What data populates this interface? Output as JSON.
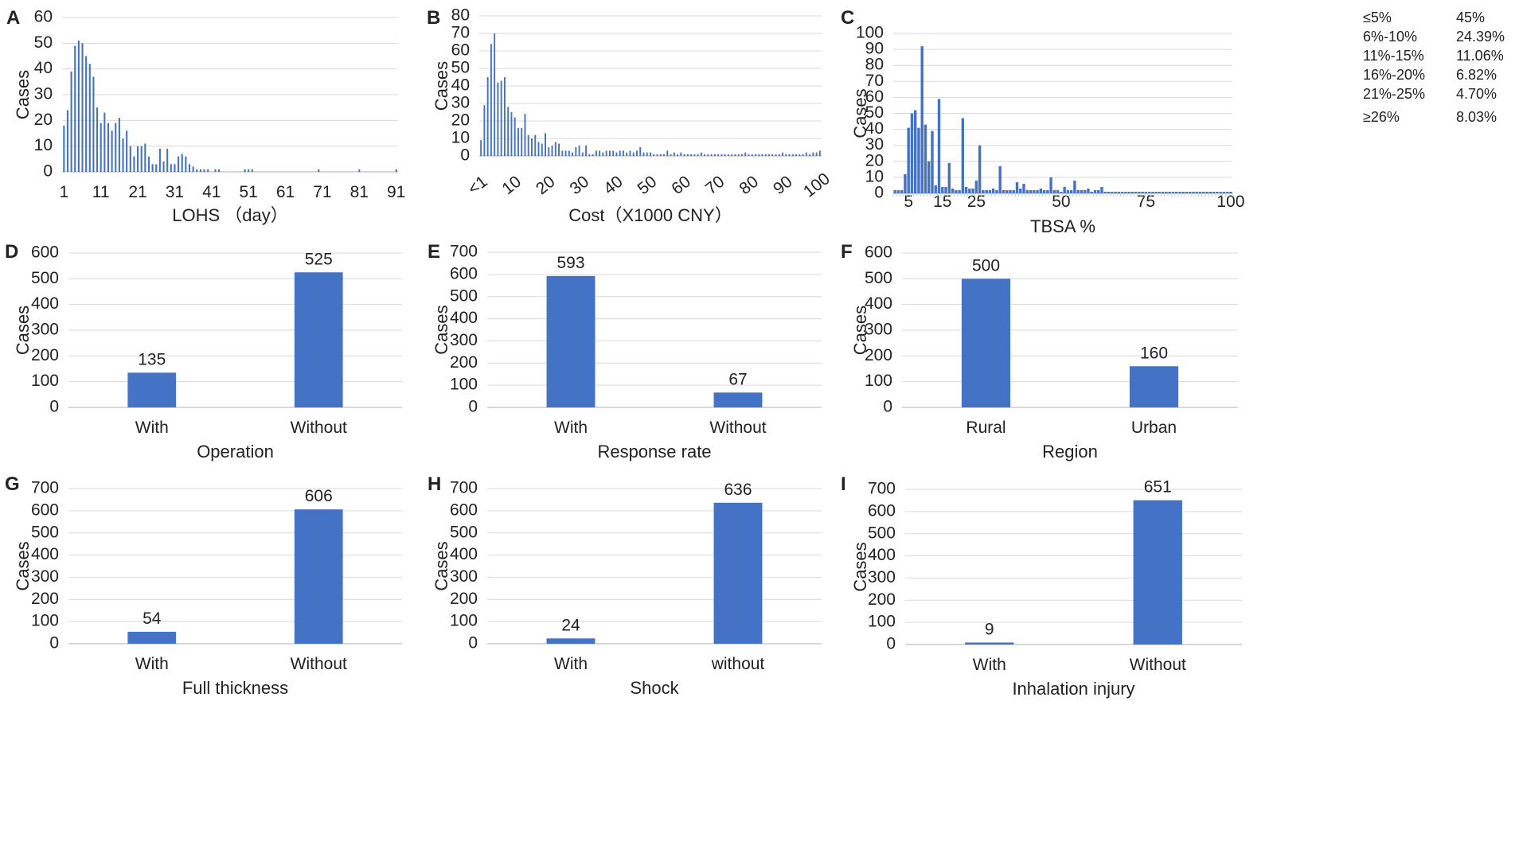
{
  "colors": {
    "bar": "#4472C4",
    "grid": "#d9d9d9",
    "text": "#222222"
  },
  "chart_data": [
    {
      "id": "A",
      "type": "bar",
      "letter": "A",
      "xlabel": "LOHS （day）",
      "ylabel": "Cases",
      "ylim": [
        0,
        60
      ],
      "yticks": [
        0,
        10,
        20,
        30,
        40,
        50,
        60
      ],
      "xticks": [
        "1",
        "11",
        "21",
        "31",
        "41",
        "51",
        "61",
        "71",
        "81",
        "91"
      ],
      "xcount": 91,
      "values": [
        18,
        24,
        39,
        49,
        51,
        50,
        45,
        42,
        37,
        25,
        19,
        23,
        19,
        16,
        19,
        21,
        13,
        16,
        10,
        6,
        10,
        10,
        11,
        6,
        3,
        3,
        9,
        4,
        9,
        3,
        3,
        6,
        7,
        6,
        3,
        2,
        1,
        1,
        1,
        1,
        0,
        1,
        1,
        0,
        0,
        0,
        0,
        0,
        0,
        1,
        1,
        1,
        0,
        0,
        0,
        0,
        0,
        0,
        0,
        0,
        0,
        0,
        0,
        0,
        0,
        0,
        0,
        0,
        0,
        1,
        0,
        0,
        0,
        0,
        0,
        0,
        0,
        0,
        0,
        0,
        1,
        0,
        0,
        0,
        0,
        0,
        0,
        0,
        0,
        0,
        1
      ]
    },
    {
      "id": "B",
      "type": "bar",
      "letter": "B",
      "xlabel": "Cost（X1000 CNY）",
      "ylabel": "Cases",
      "ylim": [
        0,
        80
      ],
      "yticks": [
        0,
        10,
        20,
        30,
        40,
        50,
        60,
        70,
        80
      ],
      "xticks": [
        "<1",
        "10",
        "20",
        "30",
        "40",
        "50",
        "60",
        "70",
        "80",
        "90",
        "100"
      ],
      "xcount": 101,
      "values": [
        9,
        29,
        45,
        64,
        70,
        42,
        43,
        45,
        28,
        25,
        22,
        16,
        16,
        24,
        12,
        10,
        12,
        8,
        7,
        13,
        5,
        6,
        8,
        7,
        3,
        3,
        3,
        2,
        5,
        6,
        2,
        6,
        1,
        1,
        3,
        3,
        2,
        3,
        3,
        3,
        2,
        3,
        3,
        2,
        3,
        2,
        3,
        5,
        2,
        2,
        2,
        1,
        1,
        1,
        1,
        3,
        1,
        2,
        1,
        2,
        1,
        1,
        1,
        1,
        1,
        2,
        1,
        1,
        1,
        1,
        1,
        1,
        1,
        1,
        1,
        1,
        1,
        1,
        2,
        1,
        1,
        1,
        1,
        1,
        1,
        1,
        1,
        1,
        1,
        2,
        1,
        1,
        1,
        1,
        1,
        1,
        2,
        1,
        2,
        2,
        3
      ]
    },
    {
      "id": "C",
      "type": "bar",
      "letter": "C",
      "xlabel": "TBSA %",
      "ylabel": "Cases",
      "ylim": [
        0,
        100
      ],
      "yticks": [
        0,
        10,
        20,
        30,
        40,
        50,
        60,
        70,
        80,
        90,
        100
      ],
      "xticks": [
        "5",
        "15",
        "25",
        "50",
        "75",
        "100"
      ],
      "xtick_positions": [
        5,
        15,
        25,
        50,
        75,
        100
      ],
      "xcount": 100,
      "values": [
        2,
        2,
        2,
        12,
        41,
        50,
        52,
        41,
        92,
        43,
        20,
        39,
        5,
        59,
        4,
        4,
        19,
        3,
        2,
        2,
        47,
        4,
        3,
        3,
        8,
        30,
        2,
        2,
        2,
        3,
        2,
        17,
        2,
        2,
        2,
        2,
        7,
        3,
        6,
        2,
        2,
        2,
        2,
        3,
        2,
        2,
        10,
        2,
        2,
        1,
        4,
        2,
        2,
        8,
        2,
        2,
        2,
        3,
        1,
        2,
        2,
        4,
        1,
        1,
        1,
        1,
        1,
        1,
        1,
        1,
        1,
        1,
        1,
        1,
        1,
        1,
        1,
        1,
        1,
        1,
        1,
        1,
        1,
        1,
        1,
        1,
        1,
        1,
        1,
        1,
        1,
        1,
        1,
        1,
        1,
        1,
        1,
        1,
        1,
        1
      ],
      "legend": [
        {
          "range": "≤5%",
          "pct": "45%"
        },
        {
          "range": "6%-10%",
          "pct": "24.39%"
        },
        {
          "range": "11%-15%",
          "pct": "11.06%"
        },
        {
          "range": "16%-20%",
          "pct": "6.82%"
        },
        {
          "range": "21%-25%",
          "pct": "4.70%"
        },
        {
          "range": "≥26%",
          "pct": "8.03%"
        }
      ]
    },
    {
      "id": "D",
      "type": "bar",
      "letter": "D",
      "xlabel": "Operation",
      "ylabel": "Cases",
      "ylim": [
        0,
        600
      ],
      "yticks": [
        0,
        100,
        200,
        300,
        400,
        500,
        600
      ],
      "categories": [
        "With",
        "Without"
      ],
      "values": [
        135,
        525
      ],
      "value_labels": [
        "135",
        "525"
      ]
    },
    {
      "id": "E",
      "type": "bar",
      "letter": "E",
      "xlabel": "Response rate",
      "ylabel": "Cases",
      "ylim": [
        0,
        700
      ],
      "yticks": [
        0,
        100,
        200,
        300,
        400,
        500,
        600,
        700
      ],
      "categories": [
        "With",
        "Without"
      ],
      "values": [
        593,
        67
      ],
      "value_labels": [
        "593",
        "67"
      ]
    },
    {
      "id": "F",
      "type": "bar",
      "letter": "F",
      "xlabel": "Region",
      "ylabel": "Cases",
      "ylim": [
        0,
        600
      ],
      "yticks": [
        0,
        100,
        200,
        300,
        400,
        500,
        600
      ],
      "categories": [
        "Rural",
        "Urban"
      ],
      "values": [
        500,
        160
      ],
      "value_labels": [
        "500",
        "160"
      ]
    },
    {
      "id": "G",
      "type": "bar",
      "letter": "G",
      "xlabel": "Full thickness",
      "ylabel": "Cases",
      "ylim": [
        0,
        700
      ],
      "yticks": [
        0,
        100,
        200,
        300,
        400,
        500,
        600,
        700
      ],
      "categories": [
        "With",
        "Without"
      ],
      "values": [
        54,
        606
      ],
      "value_labels": [
        "54",
        "606"
      ]
    },
    {
      "id": "H",
      "type": "bar",
      "letter": "H",
      "xlabel": "Shock",
      "ylabel": "Cases",
      "ylim": [
        0,
        700
      ],
      "yticks": [
        0,
        100,
        200,
        300,
        400,
        500,
        600,
        700
      ],
      "categories": [
        "With",
        "without"
      ],
      "values": [
        24,
        636
      ],
      "value_labels": [
        "24",
        "636"
      ]
    },
    {
      "id": "I",
      "type": "bar",
      "letter": "I",
      "xlabel": "Inhalation injury",
      "ylabel": "Cases",
      "ylim": [
        0,
        700
      ],
      "yticks": [
        0,
        100,
        200,
        300,
        400,
        500,
        600,
        700
      ],
      "categories": [
        "With",
        "Without"
      ],
      "values": [
        9,
        651
      ],
      "value_labels": [
        "9",
        "651"
      ]
    }
  ]
}
